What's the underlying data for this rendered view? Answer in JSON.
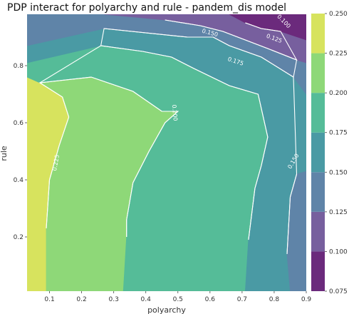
{
  "chart_data": {
    "type": "contour",
    "title": "PDP interact for polyarchy and rule - pandem_dis model",
    "xlabel": "polyarchy",
    "ylabel": "rule",
    "xlim": [
      0.03,
      0.9
    ],
    "ylim": [
      0.01,
      0.98
    ],
    "x_ticks": [
      "0.1",
      "0.2",
      "0.3",
      "0.4",
      "0.5",
      "0.6",
      "0.7",
      "0.8",
      "0.9"
    ],
    "y_ticks": [
      "0.2",
      "0.4",
      "0.6",
      "0.8"
    ],
    "colorbar": {
      "levels": [
        0.075,
        0.1,
        0.125,
        0.15,
        0.175,
        0.2,
        0.225,
        0.25
      ],
      "tick_labels": [
        "0.075",
        "0.100",
        "0.125",
        "0.150",
        "0.175",
        "0.200",
        "0.225",
        "0.250"
      ],
      "colors": [
        "#6b2a7c",
        "#775f9e",
        "#5f84a8",
        "#4a9aa4",
        "#55bc98",
        "#8ed878",
        "#d7e35e"
      ]
    },
    "contour_labels": [
      "0.100",
      "0.125",
      "0.150",
      "0.175",
      "0.200",
      "0.225",
      "0.150"
    ],
    "regions": [
      {
        "level": "0.225-0.250",
        "polygon": [
          [
            0.03,
            0.01
          ],
          [
            0.09,
            0.01
          ],
          [
            0.09,
            0.23
          ],
          [
            0.1,
            0.4
          ],
          [
            0.13,
            0.52
          ],
          [
            0.16,
            0.62
          ],
          [
            0.14,
            0.69
          ],
          [
            0.07,
            0.74
          ],
          [
            0.03,
            0.76
          ]
        ]
      },
      {
        "level": "0.200-0.225",
        "polygon": [
          [
            0.09,
            0.01
          ],
          [
            0.33,
            0.01
          ],
          [
            0.34,
            0.2
          ],
          [
            0.34,
            0.26
          ],
          [
            0.36,
            0.39
          ],
          [
            0.41,
            0.5
          ],
          [
            0.46,
            0.6
          ],
          [
            0.5,
            0.64
          ],
          [
            0.45,
            0.64
          ],
          [
            0.36,
            0.71
          ],
          [
            0.23,
            0.76
          ],
          [
            0.07,
            0.74
          ],
          [
            0.14,
            0.69
          ],
          [
            0.16,
            0.62
          ],
          [
            0.13,
            0.52
          ],
          [
            0.1,
            0.4
          ],
          [
            0.09,
            0.23
          ]
        ]
      },
      {
        "level": "0.175-0.200",
        "polygon": [
          [
            0.33,
            0.01
          ],
          [
            0.71,
            0.01
          ],
          [
            0.72,
            0.19
          ],
          [
            0.74,
            0.37
          ],
          [
            0.76,
            0.45
          ],
          [
            0.78,
            0.55
          ],
          [
            0.75,
            0.7
          ],
          [
            0.66,
            0.73
          ],
          [
            0.55,
            0.79
          ],
          [
            0.48,
            0.83
          ],
          [
            0.39,
            0.85
          ],
          [
            0.26,
            0.87
          ],
          [
            0.03,
            0.81
          ],
          [
            0.03,
            0.76
          ],
          [
            0.07,
            0.74
          ],
          [
            0.23,
            0.76
          ],
          [
            0.36,
            0.71
          ],
          [
            0.45,
            0.64
          ],
          [
            0.5,
            0.64
          ],
          [
            0.46,
            0.6
          ],
          [
            0.41,
            0.5
          ],
          [
            0.36,
            0.39
          ],
          [
            0.34,
            0.26
          ],
          [
            0.34,
            0.2
          ]
        ]
      },
      {
        "level": "0.150-0.175",
        "polygon": [
          [
            0.71,
            0.01
          ],
          [
            0.85,
            0.01
          ],
          [
            0.84,
            0.14
          ],
          [
            0.85,
            0.34
          ],
          [
            0.87,
            0.42
          ],
          [
            0.9,
            0.43
          ],
          [
            0.9,
            0.7
          ],
          [
            0.86,
            0.76
          ],
          [
            0.76,
            0.83
          ],
          [
            0.66,
            0.87
          ],
          [
            0.61,
            0.9
          ],
          [
            0.53,
            0.9
          ],
          [
            0.27,
            0.93
          ],
          [
            0.03,
            0.87
          ],
          [
            0.03,
            0.81
          ],
          [
            0.26,
            0.87
          ],
          [
            0.39,
            0.85
          ],
          [
            0.48,
            0.83
          ],
          [
            0.55,
            0.79
          ],
          [
            0.66,
            0.73
          ],
          [
            0.75,
            0.7
          ],
          [
            0.78,
            0.55
          ],
          [
            0.76,
            0.45
          ],
          [
            0.74,
            0.37
          ],
          [
            0.72,
            0.19
          ]
        ]
      },
      {
        "level": "0.125-0.150",
        "polygon": [
          [
            0.85,
            0.01
          ],
          [
            0.9,
            0.01
          ],
          [
            0.9,
            0.43
          ],
          [
            0.87,
            0.42
          ],
          [
            0.85,
            0.34
          ],
          [
            0.84,
            0.14
          ]
        ]
      },
      {
        "level": "0.125-0.150",
        "polygon": [
          [
            0.03,
            0.87
          ],
          [
            0.27,
            0.93
          ],
          [
            0.53,
            0.9
          ],
          [
            0.61,
            0.9
          ],
          [
            0.66,
            0.87
          ],
          [
            0.76,
            0.83
          ],
          [
            0.86,
            0.76
          ],
          [
            0.9,
            0.7
          ],
          [
            0.9,
            0.81
          ],
          [
            0.87,
            0.82
          ],
          [
            0.78,
            0.86
          ],
          [
            0.71,
            0.89
          ],
          [
            0.64,
            0.92
          ],
          [
            0.57,
            0.94
          ],
          [
            0.46,
            0.96
          ],
          [
            0.27,
            0.98
          ],
          [
            0.03,
            0.98
          ]
        ]
      },
      {
        "level": "0.100-0.125",
        "polygon": [
          [
            0.27,
            0.98
          ],
          [
            0.46,
            0.96
          ],
          [
            0.57,
            0.94
          ],
          [
            0.64,
            0.92
          ],
          [
            0.71,
            0.89
          ],
          [
            0.78,
            0.86
          ],
          [
            0.87,
            0.82
          ],
          [
            0.9,
            0.81
          ],
          [
            0.9,
            0.89
          ],
          [
            0.82,
            0.92
          ],
          [
            0.76,
            0.93
          ],
          [
            0.71,
            0.95
          ],
          [
            0.66,
            0.98
          ]
        ]
      },
      {
        "level": "0.075-0.100",
        "polygon": [
          [
            0.66,
            0.98
          ],
          [
            0.71,
            0.95
          ],
          [
            0.76,
            0.93
          ],
          [
            0.82,
            0.92
          ],
          [
            0.9,
            0.89
          ],
          [
            0.9,
            0.98
          ]
        ]
      }
    ]
  }
}
